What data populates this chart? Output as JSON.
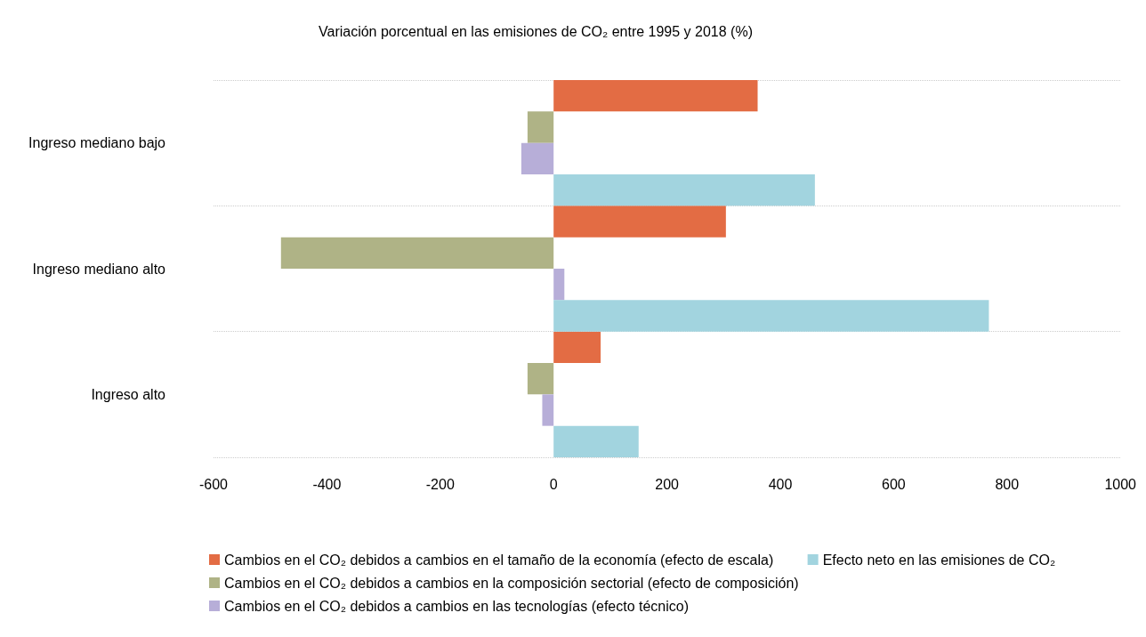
{
  "chart_data": {
    "type": "bar",
    "orientation": "horizontal",
    "title": "Variación porcentual en las emisiones de CO₂ entre 1995 y 2018 (%)",
    "categories": [
      "Ingreso mediano bajo",
      "Ingreso mediano alto",
      "Ingreso alto"
    ],
    "series": [
      {
        "name": "Cambios en el CO₂ debidos a cambios en el tamaño de la economía (efecto de escala)",
        "color": "#e36c44",
        "values": [
          360,
          304,
          83
        ]
      },
      {
        "name": "Cambios en el CO₂ debidos a cambios en la composición sectorial (efecto de composición)",
        "color": "#afb386",
        "values": [
          -46,
          -481,
          -46
        ]
      },
      {
        "name": "Cambios en el CO₂ debidos a cambios en las tecnologías (efecto técnico)",
        "color": "#b7aed8",
        "values": [
          -57,
          19,
          -20
        ]
      },
      {
        "name": "Efecto neto en las emisiones de CO₂",
        "color": "#a2d4df",
        "values": [
          461,
          768,
          150
        ]
      }
    ],
    "xlim": [
      -600,
      1000
    ],
    "xticks": [
      -600,
      -400,
      -200,
      0,
      200,
      400,
      600,
      800,
      1000
    ],
    "grid": "y",
    "legend": "bottom left"
  }
}
